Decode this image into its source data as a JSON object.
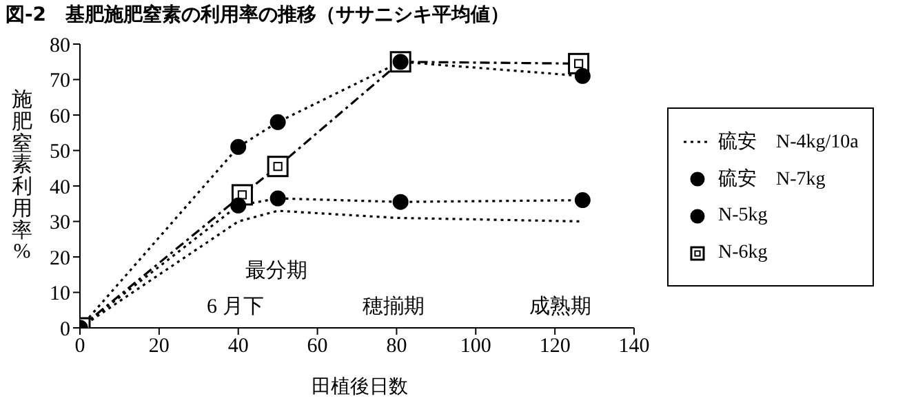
{
  "chart_data": {
    "type": "line",
    "title": "図-2　基肥施肥窒素の利用率の推移（ササニシキ平均値）",
    "xlabel": "田植後日数",
    "ylabel": "施肥窒素利用率%",
    "xlim": [
      0,
      140
    ],
    "xticks": [
      0,
      20,
      40,
      60,
      80,
      100,
      120,
      140
    ],
    "ylim": [
      0,
      80
    ],
    "yticks": [
      0,
      10,
      20,
      30,
      40,
      50,
      60,
      70,
      80
    ],
    "grid": false,
    "legend": "right",
    "series": [
      {
        "name": "硫安　N-4kg/10a",
        "color": "#000000",
        "marker": "none",
        "line_style": "dotted",
        "x": [
          0,
          40,
          50,
          80,
          127
        ],
        "values": [
          0,
          30,
          33,
          31,
          30
        ]
      },
      {
        "name": "硫安　N-7kg",
        "color": "#000000",
        "marker": "circle",
        "line_style": "dotted",
        "x": [
          0,
          40,
          50,
          81,
          127
        ],
        "values": [
          0,
          34.5,
          36.5,
          35.5,
          36
        ]
      },
      {
        "name": "N-5kg",
        "color": "#000000",
        "marker": "circle",
        "line_style": "dotted",
        "x": [
          0,
          40,
          50,
          81,
          127
        ],
        "values": [
          0,
          51,
          58,
          75,
          71
        ]
      },
      {
        "name": "N-6kg",
        "color": "#000000",
        "marker": "square",
        "line_style": "dashed",
        "x": [
          0,
          41,
          50,
          81,
          126
        ],
        "values": [
          0,
          37.5,
          45.5,
          75,
          74.5
        ]
      }
    ],
    "annotations": [
      "最分期",
      "6 月下",
      "穂揃期",
      "成熟期"
    ]
  }
}
